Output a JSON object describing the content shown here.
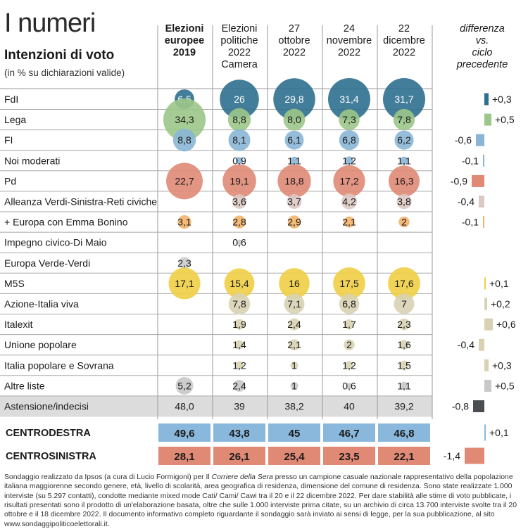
{
  "header": {
    "title": "I numeri",
    "subtitle": "Intenzioni di voto",
    "note": "(in % su dichiarazioni valide)"
  },
  "chart_data": {
    "type": "table",
    "columns": [
      [
        "Elezioni",
        "europee",
        "2019"
      ],
      [
        "Elezioni",
        "politiche",
        "2022",
        "Camera"
      ],
      [
        "27",
        "ottobre",
        "2022"
      ],
      [
        "24",
        "novembre",
        "2022"
      ],
      [
        "22",
        "dicembre",
        "2022"
      ]
    ],
    "diff_header": [
      "differenza",
      "vs.",
      "ciclo",
      "precedente"
    ],
    "rows": [
      {
        "party": "FdI",
        "values": [
          "6,5",
          "26",
          "29,8",
          "31,4",
          "31,7"
        ],
        "nums": [
          6.5,
          26,
          29.8,
          31.4,
          31.7
        ],
        "color": "#2e6f8e",
        "diff": "+0,3",
        "diff_num": 0.3
      },
      {
        "party": "Lega",
        "values": [
          "34,3",
          "8,8",
          "8,0",
          "7,3",
          "7,8"
        ],
        "nums": [
          34.3,
          8.8,
          8.0,
          7.3,
          7.8
        ],
        "color": "#9cc78a",
        "diff": "+0,5",
        "diff_num": 0.5
      },
      {
        "party": "FI",
        "values": [
          "8,8",
          "8,1",
          "6,1",
          "6,8",
          "6,2"
        ],
        "nums": [
          8.8,
          8.1,
          6.1,
          6.8,
          6.2
        ],
        "color": "#8ab6d6",
        "diff": "-0,6",
        "diff_num": -0.6
      },
      {
        "party": "Noi moderati",
        "values": [
          "",
          "0,9",
          "1,1",
          "1,2",
          "1,1"
        ],
        "nums": [
          null,
          0.9,
          1.1,
          1.2,
          1.1
        ],
        "color": "#8ab6d6",
        "diff": "-0,1",
        "diff_num": -0.1
      },
      {
        "party": "Pd",
        "values": [
          "22,7",
          "19,1",
          "18,8",
          "17,2",
          "16,3"
        ],
        "nums": [
          22.7,
          19.1,
          18.8,
          17.2,
          16.3
        ],
        "color": "#e08a76",
        "diff": "-0,9",
        "diff_num": -0.9
      },
      {
        "party": "Alleanza Verdi-Sinistra-Reti civiche",
        "values": [
          "",
          "3,6",
          "3,7",
          "4,2",
          "3,8"
        ],
        "nums": [
          null,
          3.6,
          3.7,
          4.2,
          3.8
        ],
        "color": "#dbc9c4",
        "diff": "-0,4",
        "diff_num": -0.4
      },
      {
        "party": "+ Europa con Emma Bonino",
        "values": [
          "3,1",
          "2,8",
          "2,9",
          "2,1",
          "2"
        ],
        "nums": [
          3.1,
          2.8,
          2.9,
          2.1,
          2
        ],
        "color": "#f2b26b",
        "diff": "-0,1",
        "diff_num": -0.1
      },
      {
        "party": "Impegno civico-Di Maio",
        "values": [
          "",
          "0,6",
          "",
          "",
          ""
        ],
        "nums": [
          null,
          0.6,
          null,
          null,
          null
        ],
        "color": "#cccccc",
        "diff": "",
        "diff_num": null
      },
      {
        "party": "Europa Verde-Verdi",
        "values": [
          "2,3",
          "",
          "",
          "",
          ""
        ],
        "nums": [
          2.3,
          null,
          null,
          null,
          null
        ],
        "color": "#cccccc",
        "diff": "",
        "diff_num": null
      },
      {
        "party": "M5S",
        "values": [
          "17,1",
          "15,4",
          "16",
          "17,5",
          "17,6"
        ],
        "nums": [
          17.1,
          15.4,
          16,
          17.5,
          17.6
        ],
        "color": "#f0cf45",
        "diff": "+0,1",
        "diff_num": 0.1
      },
      {
        "party": "Azione-Italia viva",
        "values": [
          "",
          "7,8",
          "7,1",
          "6,8",
          "7"
        ],
        "nums": [
          null,
          7.8,
          7.1,
          6.8,
          7
        ],
        "color": "#d8d2b2",
        "diff": "+0,2",
        "diff_num": 0.2
      },
      {
        "party": "Italexit",
        "values": [
          "",
          "1,9",
          "2,4",
          "1,7",
          "2,3"
        ],
        "nums": [
          null,
          1.9,
          2.4,
          1.7,
          2.3
        ],
        "color": "#d8d2b2",
        "diff": "+0,6",
        "diff_num": 0.6
      },
      {
        "party": "Unione popolare",
        "values": [
          "",
          "1,4",
          "2,1",
          "2",
          "1,6"
        ],
        "nums": [
          null,
          1.4,
          2.1,
          2,
          1.6
        ],
        "color": "#d8d2b2",
        "diff": "-0,4",
        "diff_num": -0.4
      },
      {
        "party": "Italia popolare e Sovrana",
        "values": [
          "",
          "1,2",
          "1",
          "1,2",
          "1,5"
        ],
        "nums": [
          null,
          1.2,
          1,
          1.2,
          1.5
        ],
        "color": "#d8d2b2",
        "diff": "+0,3",
        "diff_num": 0.3
      },
      {
        "party": "Altre liste",
        "values": [
          "5,2",
          "2,4",
          "1",
          "0,6",
          "1,1"
        ],
        "nums": [
          5.2,
          2.4,
          1,
          0.6,
          1.1
        ],
        "color": "#c8c8c8",
        "diff": "+0,5",
        "diff_num": 0.5
      }
    ],
    "abstention": {
      "party": "Astensione/indecisi",
      "values": [
        "48,0",
        "39",
        "38,2",
        "40",
        "39,2"
      ],
      "diff": "-0,8",
      "diff_num": -0.8,
      "color": "#4a4e52"
    },
    "totals": [
      {
        "label": "CENTRODESTRA",
        "values": [
          "49,6",
          "43,8",
          "45",
          "46,7",
          "46,8"
        ],
        "color": "#8ab8dc",
        "diff": "+0,1",
        "diff_num": 0.1,
        "diff_color": "#8ab8dc"
      },
      {
        "label": "CENTROSINISTRA",
        "values": [
          "28,1",
          "26,1",
          "25,4",
          "23,5",
          "22,1"
        ],
        "color": "#e08a76",
        "diff": "-1,4",
        "diff_num": -1.4,
        "diff_color": "#e08a76"
      }
    ]
  },
  "footnote": {
    "before_italic": "Sondaggio realizzato da Ipsos (a cura di Lucio Formigoni) per Il ",
    "italic": "Corriere della Sera",
    "after_italic": " presso un campione casuale nazionale rappresentativo della popolazione italiana maggiorenne secondo genere, età, livello di scolarità, area geografica di residenza, dimensione del comune di residenza. Sono state realizzate 1.000 interviste (su 5.297 contatti), condotte mediante mixed mode Cati/ Cami/ Cawi tra il 20 e il 22 dicembre 2022. Per dare stabilità alle stime di voto pubblicate, i risultati presentati sono il prodotto di un'elaborazione basata, oltre che sulle 1.000 interviste prima citate, su un archivio di circa 13.700 interviste svolte tra il 20 ottobre e il 18 dicembre 2022. Il documento informativo completo riguardante il sondaggio sarà inviato ai sensi di legge, per la sua pubblicazione, al sito www.sondaggipoliticoelettorali.it."
  }
}
